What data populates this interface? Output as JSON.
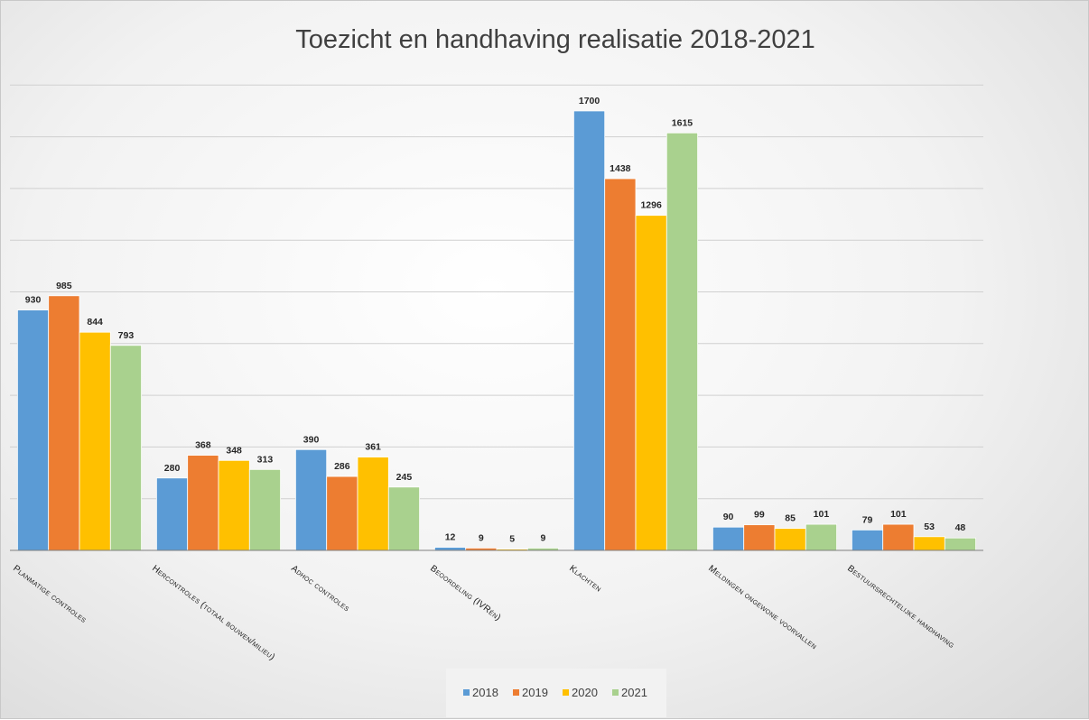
{
  "chart_data": {
    "type": "bar",
    "title": "Toezicht en handhaving realisatie 2018-2021",
    "categories": [
      "Planmatige controles",
      "Hercontroles (totaal bouwen/milieu)",
      "Adhoc controles",
      "Beoordeling (IVRén)",
      "Klachten",
      "Meldingen ongewone voorvallen",
      "Bestuursrechtelijke handhaving"
    ],
    "series": [
      {
        "name": "2018",
        "color": "#5b9bd5",
        "values": [
          930,
          280,
          390,
          12,
          1700,
          90,
          79
        ]
      },
      {
        "name": "2019",
        "color": "#ed7d31",
        "values": [
          985,
          368,
          286,
          9,
          1438,
          99,
          101
        ]
      },
      {
        "name": "2020",
        "color": "#ffc000",
        "values": [
          844,
          348,
          361,
          5,
          1296,
          85,
          53
        ]
      },
      {
        "name": "2021",
        "color": "#a9d18e",
        "values": [
          793,
          313,
          245,
          9,
          1615,
          101,
          48
        ]
      }
    ],
    "xlabel": "",
    "ylabel": "",
    "ylim": [
      0,
      1800
    ],
    "gridlines": true,
    "y_tick_labels_visible": false,
    "data_labels": true,
    "legend_position": "bottom"
  }
}
